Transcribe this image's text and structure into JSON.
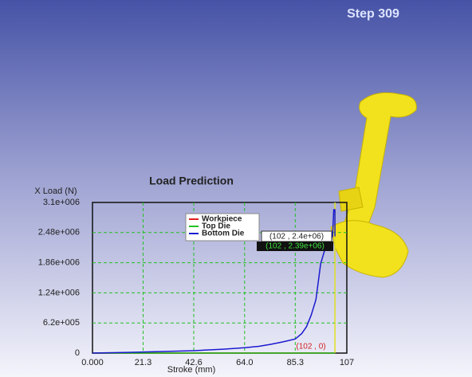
{
  "step_label": "Step 309",
  "chart_data": {
    "type": "line",
    "title": "Load Prediction",
    "y_label": "X Load (N)",
    "x_label": "Stroke (mm)",
    "xlim": [
      0,
      107
    ],
    "ylim": [
      0,
      3100000
    ],
    "xticks": [
      {
        "value": 0,
        "label": "0.000"
      },
      21.3,
      42.6,
      {
        "value": 64,
        "label": "64.0"
      },
      85.3,
      107
    ],
    "yticks": [
      0,
      {
        "value": 620000,
        "label": "6.2e+005"
      },
      {
        "value": 1240000,
        "label": "1.24e+006"
      },
      {
        "value": 1860000,
        "label": "1.86e+006"
      },
      {
        "value": 2480000,
        "label": "2.48e+006"
      },
      {
        "value": 3100000,
        "label": "3.1e+006"
      }
    ],
    "grid": true,
    "series": [
      {
        "name": "Workpiece",
        "color": "#e02020",
        "x": [
          0,
          102
        ],
        "values": [
          0,
          0
        ]
      },
      {
        "name": "Top Die",
        "color": "#20c020",
        "x": [
          0,
          102
        ],
        "values": [
          0,
          0
        ]
      },
      {
        "name": "Bottom Die",
        "color": "#1a1ad0",
        "x": [
          0,
          15,
          28,
          42.6,
          55,
          64,
          70,
          75,
          80,
          85.3,
          88,
          90,
          92,
          94,
          96,
          98,
          100,
          101,
          101.5,
          102,
          102
        ],
        "values": [
          0,
          15000,
          30000,
          50000,
          80000,
          110000,
          140000,
          180000,
          230000,
          290000,
          400000,
          540000,
          780000,
          1100000,
          1840000,
          2170000,
          2330000,
          2400000,
          2950000,
          2950000,
          2400000
        ]
      }
    ],
    "cursor_x": 102,
    "annotations": [
      "(102 , 2.4e+06)",
      "(102 , 2.39e+06)",
      "(102 , 0)"
    ]
  }
}
